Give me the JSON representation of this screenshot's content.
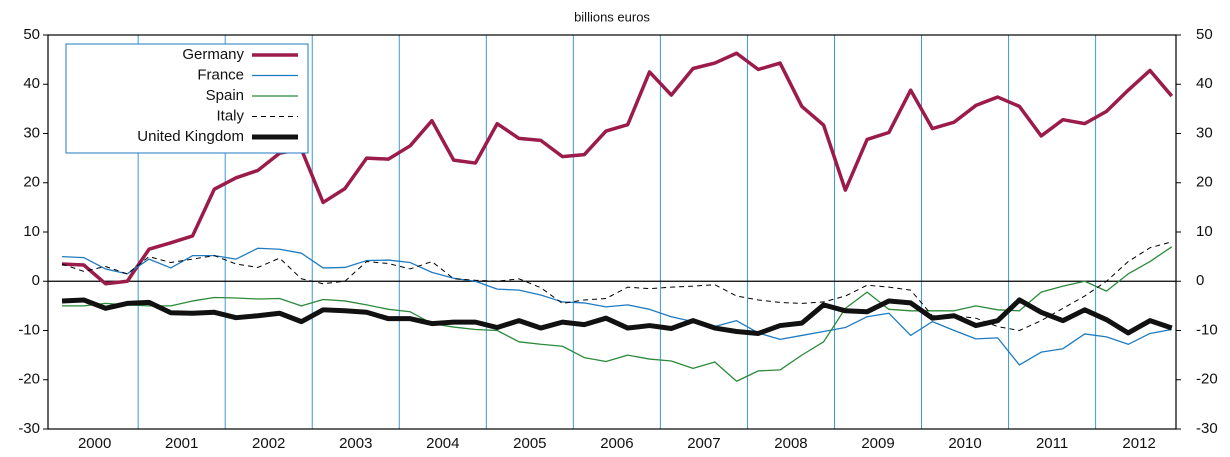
{
  "chart_data": {
    "type": "line",
    "subtitle": "billions euros",
    "categories": [
      null,
      "2000",
      null,
      null,
      null,
      "2001",
      null,
      null,
      null,
      "2002",
      null,
      null,
      null,
      "2003",
      null,
      null,
      null,
      "2004",
      null,
      null,
      null,
      "2005",
      null,
      null,
      null,
      "2006",
      null,
      null,
      null,
      "2007",
      null,
      null,
      null,
      "2008",
      null,
      null,
      null,
      "2009",
      null,
      null,
      null,
      "2010",
      null,
      null,
      null,
      "2011",
      null,
      null,
      null,
      "2012",
      null,
      null
    ],
    "series": [
      {
        "name": "Germany",
        "color": "#9b1b4b",
        "width": 3.5,
        "dash": false,
        "values": [
          3.5,
          3.3,
          -0.5,
          0,
          6.5,
          7.8,
          9.2,
          18.7,
          21,
          22.5,
          26,
          26.8,
          16,
          18.8,
          25,
          24.8,
          27.5,
          32.6,
          24.6,
          24,
          32,
          29,
          28.6,
          25.3,
          25.7,
          30.5,
          31.8,
          42.5,
          37.8,
          43.2,
          44.3,
          46.3,
          43,
          44.3,
          35.5,
          31.7,
          18.5,
          28.8,
          30.2,
          38.8,
          31,
          32.3,
          35.7,
          37.4,
          35.5,
          29.5,
          32.8,
          32,
          34.5,
          38.8,
          42.8,
          37.6
        ]
      },
      {
        "name": "France",
        "color": "#1f7bc0",
        "width": 1.3,
        "dash": false,
        "values": [
          5,
          4.8,
          2.5,
          1.5,
          4.5,
          2.7,
          5.2,
          5.2,
          4.5,
          6.7,
          6.5,
          5.7,
          2.7,
          2.8,
          4.2,
          4.3,
          3.8,
          1.8,
          0.6,
          0,
          -1.6,
          -1.8,
          -2.8,
          -4.2,
          -4.4,
          -5.2,
          -4.8,
          -5.7,
          -7.2,
          -8.2,
          -9.2,
          -8,
          -10.5,
          -11.8,
          -11,
          -10.2,
          -9.4,
          -7.2,
          -6.5,
          -11,
          -8.2,
          -10,
          -11.7,
          -11.5,
          -17,
          -14.4,
          -13.7,
          -10.7,
          -11.3,
          -12.8,
          -10.6,
          -9.8
        ]
      },
      {
        "name": "Spain",
        "color": "#2b8a3a",
        "width": 1.3,
        "dash": false,
        "values": [
          -5,
          -5,
          -4.5,
          -4.8,
          -5,
          -5,
          -4,
          -3.3,
          -3.4,
          -3.6,
          -3.5,
          -5,
          -3.7,
          -4,
          -4.8,
          -5.7,
          -6.2,
          -8.6,
          -9.3,
          -9.8,
          -10,
          -12.3,
          -12.8,
          -13.2,
          -15.5,
          -16.3,
          -15,
          -15.8,
          -16.2,
          -17.7,
          -16.4,
          -20.3,
          -18.2,
          -18,
          -15,
          -12.3,
          -5.5,
          -2.2,
          -5.7,
          -6,
          -6,
          -6,
          -5,
          -5.8,
          -6,
          -2.2,
          -1,
          0,
          -2,
          1.5,
          4,
          7
        ]
      },
      {
        "name": "Italy",
        "color": "#000000",
        "width": 1,
        "dash": true,
        "values": [
          3.5,
          2,
          3,
          1.5,
          5,
          3.8,
          4.5,
          5.2,
          3.5,
          2.8,
          4.7,
          0.5,
          -0.5,
          0,
          4,
          3.6,
          2.5,
          4,
          0.5,
          0.2,
          0,
          0.5,
          -1.3,
          -4.5,
          -3.8,
          -3.5,
          -1.2,
          -1.5,
          -1.2,
          -1,
          -0.7,
          -3,
          -3.8,
          -4.3,
          -4.5,
          -4.2,
          -3,
          -0.8,
          -1.2,
          -1.8,
          -7,
          -7,
          -7.5,
          -9.2,
          -10,
          -8,
          -5.5,
          -3,
          0,
          4,
          6.8,
          8
        ]
      },
      {
        "name": "United Kingdom",
        "color": "#111111",
        "width": 5,
        "dash": false,
        "values": [
          -4,
          -3.8,
          -5.5,
          -4.5,
          -4.3,
          -6.4,
          -6.5,
          -6.3,
          -7.4,
          -7,
          -6.5,
          -8.2,
          -5.8,
          -6,
          -6.3,
          -7.6,
          -7.6,
          -8.6,
          -8.3,
          -8.3,
          -9.4,
          -8,
          -9.5,
          -8.3,
          -8.8,
          -7.5,
          -9.5,
          -9,
          -9.6,
          -8,
          -9.5,
          -10.2,
          -10.6,
          -9,
          -8.5,
          -4.8,
          -6,
          -6.2,
          -4,
          -4.4,
          -7.5,
          -7,
          -9,
          -8,
          -3.8,
          -6.3,
          -8,
          -5.8,
          -7.8,
          -10.5,
          -8,
          -9.5
        ]
      }
    ],
    "ylim": [
      -30,
      50
    ],
    "yticks": [
      -30,
      -20,
      -10,
      0,
      10,
      20,
      30,
      40,
      50
    ],
    "y2lim": [
      -30,
      50
    ],
    "y2ticks": [
      -30,
      -20,
      -10,
      0,
      10,
      20,
      30,
      40,
      50
    ],
    "legend": "upper-left"
  }
}
